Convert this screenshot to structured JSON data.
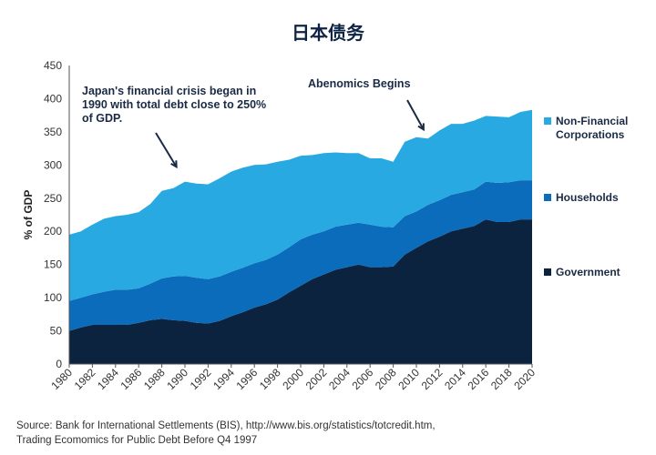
{
  "chart_data": {
    "type": "area",
    "stacked": true,
    "title": "日本债务",
    "ylabel": "% of GDP",
    "xlabel": "",
    "ylim": [
      0,
      450
    ],
    "yticks": [
      0,
      50,
      100,
      150,
      200,
      250,
      300,
      350,
      400,
      450
    ],
    "xlim": [
      1980,
      2020
    ],
    "xticks": [
      1980,
      1982,
      1984,
      1986,
      1988,
      1990,
      1992,
      1994,
      1996,
      1998,
      2000,
      2002,
      2004,
      2006,
      2008,
      2010,
      2012,
      2014,
      2016,
      2018,
      2020
    ],
    "grid": false,
    "legend_position": "right",
    "x": [
      1980,
      1981,
      1982,
      1983,
      1984,
      1985,
      1986,
      1987,
      1988,
      1989,
      1990,
      1991,
      1992,
      1993,
      1994,
      1995,
      1996,
      1997,
      1998,
      1999,
      2000,
      2001,
      2002,
      2003,
      2004,
      2005,
      2006,
      2007,
      2008,
      2009,
      2010,
      2011,
      2012,
      2013,
      2014,
      2015,
      2016,
      2017,
      2018,
      2019,
      2020
    ],
    "series": [
      {
        "name": "Government",
        "color": "#0c2340",
        "values": [
          50,
          55,
          59,
          59,
          59,
          59,
          62,
          66,
          68,
          66,
          65,
          62,
          61,
          65,
          72,
          78,
          85,
          90,
          97,
          108,
          118,
          128,
          135,
          142,
          146,
          150,
          146,
          146,
          147,
          165,
          175,
          185,
          192,
          200,
          204,
          208,
          218,
          214,
          214,
          218,
          218
        ]
      },
      {
        "name": "Households",
        "color": "#0a6cba",
        "values": [
          45,
          45,
          46,
          50,
          53,
          53,
          52,
          55,
          61,
          66,
          68,
          68,
          67,
          67,
          67,
          67,
          67,
          67,
          68,
          68,
          70,
          67,
          65,
          65,
          64,
          63,
          64,
          61,
          59,
          58,
          55,
          55,
          55,
          55,
          55,
          55,
          57,
          59,
          60,
          59,
          59
        ]
      },
      {
        "name": "Non-Financial Corporations",
        "color": "#29a9e1",
        "values": [
          100,
          100,
          105,
          110,
          111,
          113,
          115,
          120,
          132,
          133,
          142,
          142,
          143,
          148,
          151,
          151,
          148,
          144,
          140,
          132,
          126,
          120,
          118,
          112,
          108,
          105,
          100,
          103,
          99,
          112,
          112,
          100,
          105,
          107,
          103,
          104,
          99,
          100,
          98,
          103,
          106
        ]
      }
    ],
    "annotations": [
      {
        "text": [
          "Japan's financial crisis began in",
          "1990 with total debt close to 250%",
          "of GDP."
        ],
        "arrow_to": [
          1989.5,
          300
        ]
      },
      {
        "text": [
          "Abenomics Begins"
        ],
        "arrow_to": [
          2010.7,
          348
        ]
      }
    ]
  },
  "source": [
    "Source: Bank for International Settlements (BIS), http://www.bis.org/statistics/totcredit.htm,",
    "Trading Ecomomics for Public Debt Before Q4 1997"
  ]
}
